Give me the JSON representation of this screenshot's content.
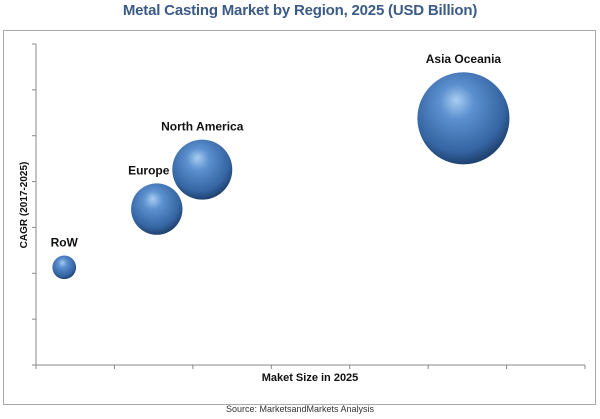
{
  "chart_data": {
    "type": "bubble",
    "title": "Metal Casting Market by Region, 2025 (USD Billion)",
    "xlabel": "Maket Size in 2025",
    "ylabel": "CAGR (2017-2025)",
    "xlim": [
      0,
      7
    ],
    "ylim": [
      0,
      7
    ],
    "x_ticks": 8,
    "y_ticks": 8,
    "grid": false,
    "legend": "none",
    "bubble_color": "#3f72b0",
    "points": [
      {
        "label": "RoW",
        "x": 0.36,
        "y": 2.13,
        "size": 1.4
      },
      {
        "label": "Europe",
        "x": 1.54,
        "y": 3.4,
        "size": 6.6
      },
      {
        "label": "North America",
        "x": 2.12,
        "y": 4.26,
        "size": 9.0
      },
      {
        "label": "Asia Oceania",
        "x": 5.45,
        "y": 5.38,
        "size": 21.2
      }
    ]
  },
  "source": "Source: MarketsandMarkets  Analysis"
}
